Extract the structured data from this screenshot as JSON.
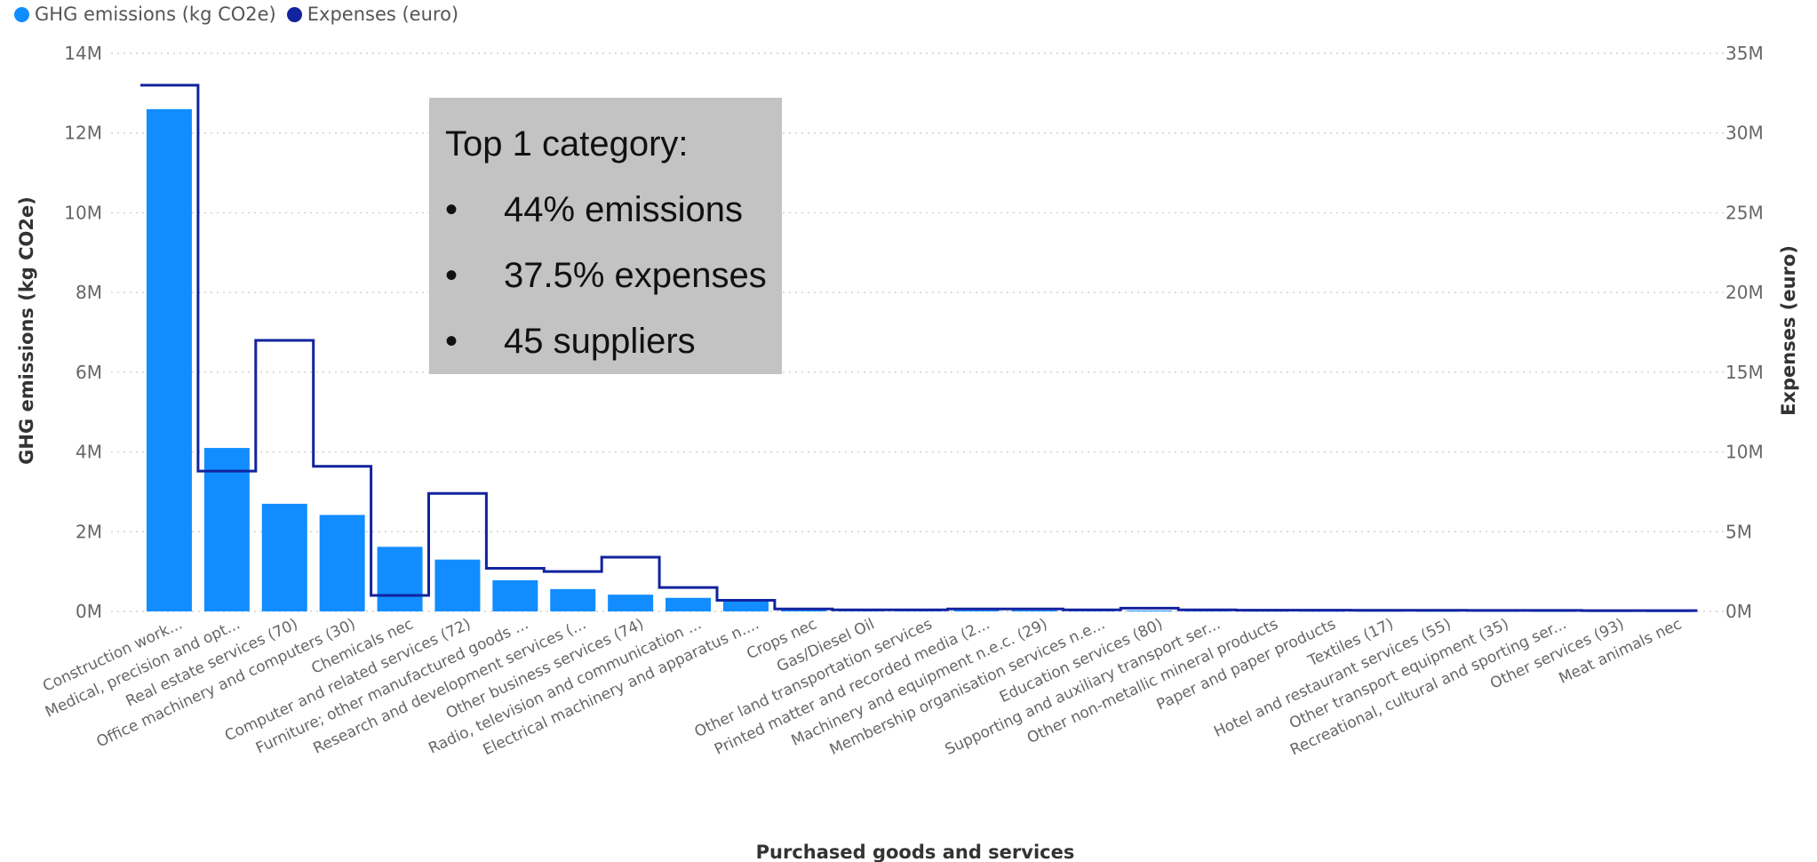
{
  "chart_data": {
    "type": "bar",
    "legend": [
      {
        "label": "GHG emissions (kg CO2e)",
        "color": "#118DFF",
        "icon": "circle"
      },
      {
        "label": "Expenses (euro)",
        "color": "#12239E",
        "icon": "circle"
      }
    ],
    "legend_position": "top-left",
    "xlabel": "Purchased goods and services",
    "ylabel": "GHG emissions (kg CO2e)",
    "ylabel_right": "Expenses (euro)",
    "ylim": [
      0,
      14000000
    ],
    "ylim_right": [
      0,
      35000000
    ],
    "yticks": [
      "0M",
      "2M",
      "4M",
      "6M",
      "8M",
      "10M",
      "12M",
      "14M"
    ],
    "yticks_right": [
      "0M",
      "5M",
      "10M",
      "15M",
      "20M",
      "25M",
      "30M",
      "35M"
    ],
    "grid": true,
    "categories": [
      "Construction work...",
      "Medical, precision and opt...",
      "Real estate services (70)",
      "Office machinery and computers (30)",
      "Chemicals nec",
      "Computer and related services (72)",
      "Furniture; other manufactured goods ...",
      "Research and development services (...",
      "Other business services (74)",
      "Radio, television and communication ...",
      "Electrical machinery and apparatus n....",
      "Crops nec",
      "Gas/Diesel Oil",
      "Other land transportation services",
      "Printed matter and recorded media (2...",
      "Machinery and equipment n.e.c. (29)",
      "Membership organisation services n.e...",
      "Education services (80)",
      "Supporting and auxiliary transport ser...",
      "Other non-metallic mineral products",
      "Paper and paper products",
      "Textiles (17)",
      "Hotel and restaurant services (55)",
      "Other transport equipment (35)",
      "Recreational, cultural and sporting ser...",
      "Other services (93)",
      "Meat animals nec"
    ],
    "series": [
      {
        "name": "GHG emissions (kg CO2e)",
        "type": "bar",
        "axis": "left",
        "color": "#118DFF",
        "values": [
          12600000,
          4100000,
          2700000,
          2420000,
          1620000,
          1300000,
          780000,
          560000,
          420000,
          340000,
          250000,
          60000,
          40000,
          35000,
          30000,
          28000,
          25000,
          22000,
          20000,
          18000,
          16000,
          15000,
          14000,
          12000,
          10000,
          8000,
          6000
        ]
      },
      {
        "name": "Expenses (euro)",
        "type": "step-line",
        "axis": "right",
        "color": "#12239E",
        "values": [
          33000000,
          8800000,
          17000000,
          9100000,
          1000000,
          7400000,
          2700000,
          2500000,
          3400000,
          1500000,
          700000,
          150000,
          100000,
          100000,
          150000,
          150000,
          100000,
          200000,
          100000,
          80000,
          80000,
          70000,
          70000,
          60000,
          60000,
          50000,
          50000
        ]
      }
    ]
  },
  "callout": {
    "title": "Top 1 category:",
    "bullet_symbol": "•",
    "bullets": [
      "44% emissions",
      "37.5% expenses",
      "45 suppliers"
    ]
  }
}
